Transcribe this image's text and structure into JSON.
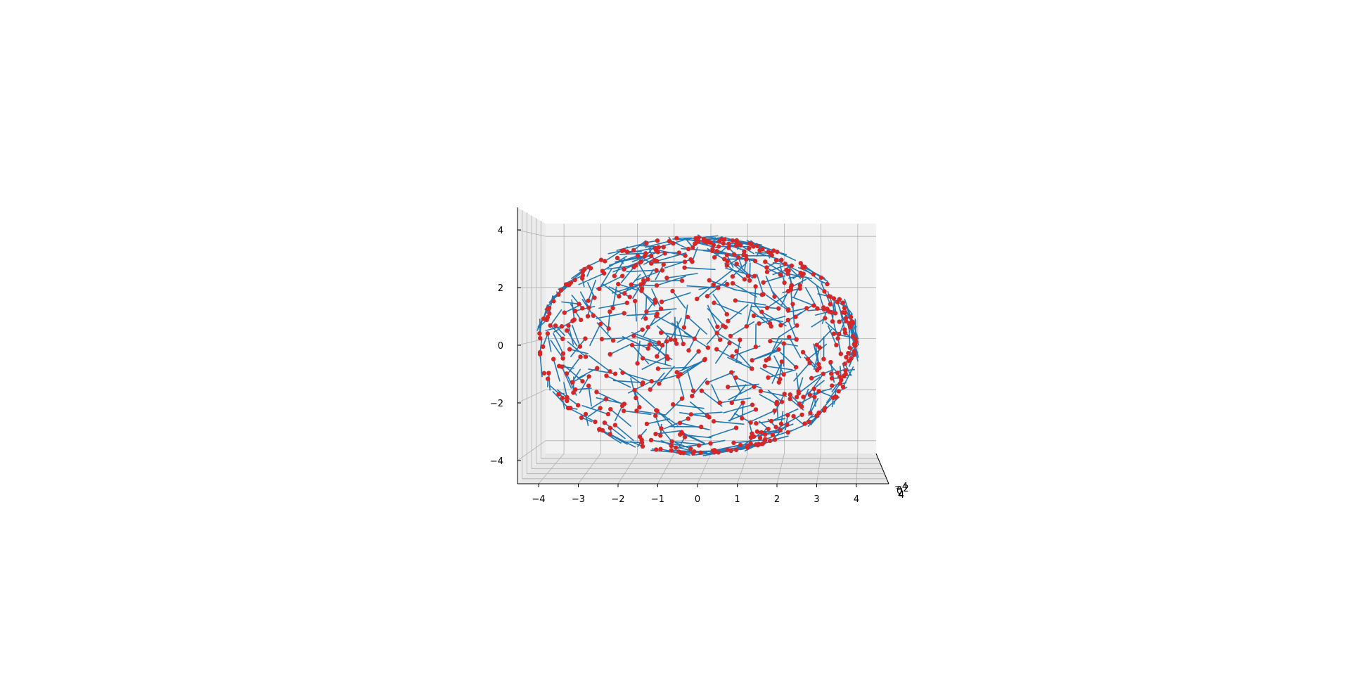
{
  "chart_data": {
    "type": "scatter",
    "subtype": "3d-quiver",
    "title": "",
    "xlabel": "",
    "ylabel": "",
    "zlabel": "",
    "view": "front (x horizontal, z vertical)",
    "grid": true,
    "xlim": [
      -4.5,
      4.5
    ],
    "zlim": [
      -4.5,
      4.5
    ],
    "x_ticks": [
      "−4",
      "−3",
      "−2",
      "−1",
      "0",
      "1",
      "2",
      "3",
      "4"
    ],
    "z_ticks": [
      "4",
      "2",
      "0",
      "−2",
      "−4"
    ],
    "y_ticks": [
      "−4",
      "−2",
      "0",
      "2",
      "4"
    ],
    "surface": "ellipsoid",
    "semi_axes": {
      "x": 4,
      "z": 3.75
    },
    "n_points": 560,
    "segment_length": 0.8,
    "colors": {
      "points": "#d62728",
      "segments": "#1f77b4",
      "pane_back": "#f2f2f2",
      "grid": "#b0b0b0"
    }
  }
}
